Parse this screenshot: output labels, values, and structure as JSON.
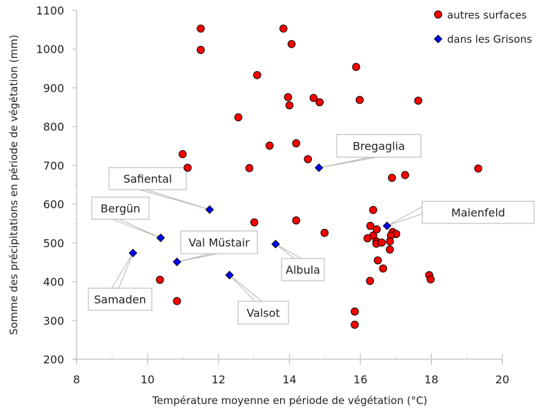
{
  "chart_data": {
    "type": "scatter",
    "xlabel": "Température moyenne en période de végétation (°C)",
    "ylabel": "Somme des précipitations en période de végétation (mm)",
    "xlim": [
      8,
      20
    ],
    "ylim": [
      200,
      1100
    ],
    "xticks": [
      "8",
      "10",
      "12",
      "14",
      "16",
      "18",
      "20"
    ],
    "yticks": [
      "200",
      "300",
      "400",
      "500",
      "600",
      "700",
      "800",
      "900",
      "1000",
      "1100"
    ],
    "grid": false,
    "legend_position": "top-right",
    "series": [
      {
        "name": "autres surfaces",
        "color": "#ff0000",
        "marker": "circle",
        "points": [
          [
            11.5,
            1053
          ],
          [
            11.5,
            998
          ],
          [
            13.83,
            1053
          ],
          [
            14.06,
            1013
          ],
          [
            15.88,
            954
          ],
          [
            13.09,
            933
          ],
          [
            13.96,
            876
          ],
          [
            14.68,
            874
          ],
          [
            14.85,
            863
          ],
          [
            14.0,
            855
          ],
          [
            15.98,
            869
          ],
          [
            17.63,
            867
          ],
          [
            12.56,
            824
          ],
          [
            13.44,
            751
          ],
          [
            14.19,
            757
          ],
          [
            10.99,
            729
          ],
          [
            11.13,
            694
          ],
          [
            14.52,
            716
          ],
          [
            12.87,
            693
          ],
          [
            19.32,
            692
          ],
          [
            16.89,
            668
          ],
          [
            17.26,
            675
          ],
          [
            13.01,
            553
          ],
          [
            14.19,
            558
          ],
          [
            14.99,
            526
          ],
          [
            15.84,
            289
          ],
          [
            15.84,
            323
          ],
          [
            10.35,
            405
          ],
          [
            10.83,
            350
          ],
          [
            16.27,
            402
          ],
          [
            17.94,
            417
          ],
          [
            17.98,
            406
          ],
          [
            16.36,
            585
          ],
          [
            16.28,
            544
          ],
          [
            16.46,
            535
          ],
          [
            16.36,
            519
          ],
          [
            16.2,
            512
          ],
          [
            16.45,
            504
          ],
          [
            16.45,
            498
          ],
          [
            16.6,
            501
          ],
          [
            16.91,
            528
          ],
          [
            17.01,
            523
          ],
          [
            16.86,
            519
          ],
          [
            16.83,
            504
          ],
          [
            16.83,
            483
          ],
          [
            16.49,
            455
          ],
          [
            16.64,
            434
          ]
        ]
      },
      {
        "name": "dans les Grisons",
        "color": "#0000ff",
        "marker": "diamond",
        "points": [
          {
            "label": "Bregaglia",
            "x": 14.83,
            "y": 694
          },
          {
            "label": "Safiental",
            "x": 11.75,
            "y": 586
          },
          {
            "label": "Bergün",
            "x": 10.37,
            "y": 513
          },
          {
            "label": "Val Müstair",
            "x": 10.83,
            "y": 451
          },
          {
            "label": "Samaden",
            "x": 9.59,
            "y": 474
          },
          {
            "label": "Albula",
            "x": 13.61,
            "y": 497
          },
          {
            "label": "Valsot",
            "x": 12.31,
            "y": 417
          },
          {
            "label": "Maienfeld",
            "x": 16.75,
            "y": 544
          }
        ]
      }
    ]
  }
}
